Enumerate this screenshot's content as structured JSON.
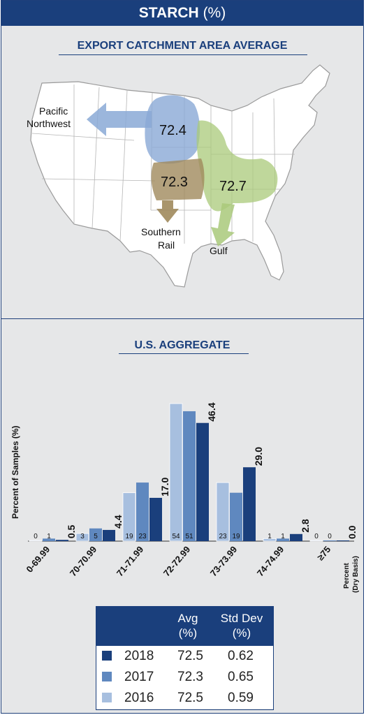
{
  "header": {
    "title": "STARCH",
    "unit": "(%)"
  },
  "map_section": {
    "title": "EXPORT CATCHMENT AREA AVERAGE",
    "regions": [
      {
        "name": "Pacific Northwest",
        "label_line1": "Pacific",
        "label_line2": "Northwest",
        "value": "72.4",
        "color": "#8aa9d6"
      },
      {
        "name": "Southern Rail",
        "label_line1": "Southern",
        "label_line2": "Rail",
        "value": "72.3",
        "color": "#a08a5c"
      },
      {
        "name": "Gulf",
        "label_line1": "Gulf",
        "label_line2": "",
        "value": "72.7",
        "color": "#a9c97a"
      }
    ]
  },
  "chart_section": {
    "title": "U.S. AGGREGATE"
  },
  "chart_data": {
    "type": "bar",
    "ylabel": "Percent of Samples (%)",
    "xlabel_line1": "Percent",
    "xlabel_line2": "(Dry Basis)",
    "categories": [
      "0-69.99",
      "70-70.99",
      "71-71.99",
      "72-72.99",
      "73-73.99",
      "74-74.99",
      "≥75"
    ],
    "series": [
      {
        "name": "2016",
        "color": "#a7bfdf",
        "values": [
          0,
          3,
          19,
          54,
          23,
          1,
          0
        ],
        "labels": [
          "0",
          "3",
          "19",
          "54",
          "23",
          "1",
          "0"
        ]
      },
      {
        "name": "2017",
        "color": "#5f88bf",
        "values": [
          1,
          5,
          23,
          51,
          19,
          1,
          0
        ],
        "labels": [
          "1",
          "5",
          "23",
          "51",
          "19",
          "1",
          "0"
        ]
      },
      {
        "name": "2018",
        "color": "#1a3f7c",
        "values": [
          0.5,
          4.4,
          17.0,
          46.4,
          29.0,
          2.8,
          0.0
        ],
        "labels": [
          "0.5",
          "4.4",
          "17.0",
          "46.4",
          "29.0",
          "2.8",
          "0.0"
        ]
      }
    ],
    "ylim": [
      0,
      54
    ]
  },
  "stats_table": {
    "headers": {
      "avg": "Avg",
      "avg_unit": "(%)",
      "std": "Std Dev",
      "std_unit": "(%)"
    },
    "rows": [
      {
        "year": "2018",
        "avg": "72.5",
        "std": "0.62",
        "color": "#1a3f7c"
      },
      {
        "year": "2017",
        "avg": "72.3",
        "std": "0.65",
        "color": "#5f88bf"
      },
      {
        "year": "2016",
        "avg": "72.5",
        "std": "0.59",
        "color": "#a7bfdf"
      }
    ]
  }
}
